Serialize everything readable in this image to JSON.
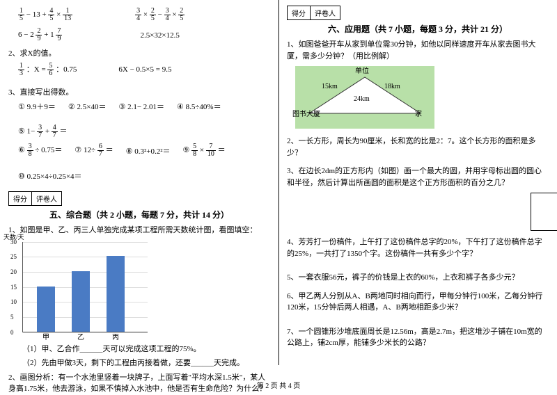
{
  "left": {
    "calc_row1a": "− 13 +",
    "calc_row1b": "×",
    "f1_5n": "1",
    "f1_5d": "5",
    "f4_5n": "4",
    "f4_5d": "5",
    "f1_13n": "1",
    "f1_13d": "13",
    "calc_row1c_a": "3",
    "calc_row1c_b": "4",
    "calc_row1c_c": "2",
    "calc_row1c_d": "5",
    "calc_row1c_e": "3",
    "calc_row1c_f": "4",
    "calc_row1c_g": "2",
    "calc_row1c_h": "5",
    "calc_row1c_text": "× − ×",
    "calc_row2a_pre": "6 − 2",
    "f2_9n": "2",
    "f2_9d": "9",
    "calc_row2a_mid": "+ 1",
    "f7_9n": "7",
    "f7_9d": "9",
    "calc_row2b": "2.5×32×12.5",
    "q2": "2、求X的值。",
    "q2a_pre": "：X =",
    "f1_3n": "1",
    "f1_3d": "3",
    "f5_6n": "5",
    "f5_6d": "6",
    "q2a_suf": "：0.75",
    "q2b": "6X − 0.5×5 = 9.5",
    "q3": "3、直接写出得数。",
    "c1": "① 9.9＋9＝",
    "c2": "② 2.5×40＝",
    "c3": "③ 2.1− 2.01＝",
    "c4": "④ 8.5÷40%＝",
    "c5": "⑤ 1−",
    "f3_7n": "3",
    "f3_7d": "7",
    "c5mid": "+",
    "f4_7n": "4",
    "f4_7d": "7",
    "c5suf": "＝",
    "c6": "⑥",
    "f3_8n": "3",
    "f3_8d": "8",
    "c6suf": "÷ 0.75＝",
    "c7": "⑦ 12÷",
    "f6_7n": "6",
    "f6_7d": "7",
    "c7suf": "＝",
    "c8": "⑧ 0.3²+0.2²＝",
    "c9": "⑨",
    "f5_8n": "5",
    "f5_8d": "8",
    "c9mid": "×",
    "f7_10n": "7",
    "f7_10d": "10",
    "c9suf": "＝",
    "c10": "⑩ 0.25×4÷0.25×4＝",
    "score_label1": "得分",
    "score_label2": "评卷人",
    "section5": "五、综合题（共 2 小题，每题 7 分，共计 14 分）",
    "s5q1": "1、如图是甲、乙、丙三人单独完成某项工程所需天数统计图，看图填空：",
    "chart": {
      "y_title": "天数/天",
      "y_vals": [
        "0",
        "5",
        "10",
        "15",
        "20",
        "25",
        "30"
      ],
      "bars": [
        {
          "label": "甲",
          "value": 15,
          "color": "#4a7bc4"
        },
        {
          "label": "乙",
          "value": 20,
          "color": "#4a7bc4"
        },
        {
          "label": "丙",
          "value": 25,
          "color": "#4a7bc4"
        }
      ],
      "max": 30
    },
    "s5q1a": "（1）甲、乙合作______天可以完成这项工程的75%。",
    "s5q1b": "（2）先由甲做3天，剩下的工程由丙接着做，还要______天完成。",
    "s5q2": "2、画图分析：有一个水池里竖着一块牌子，上面写着\"平均水深1.5米\"，某人身高1.75米，他去游泳，如果不慎掉入水池中，他是否有生命危险？为什么？"
  },
  "right": {
    "score_label1": "得分",
    "score_label2": "评卷人",
    "section6": "六、应用题（共 7 小题，每题 3 分，共计 21 分）",
    "q1": "1、如图爸爸开车从家到单位需30分钟，如他以同样速度开车从家去图书大厦，需多少分钟？（用比例解）",
    "tri": {
      "top": "单位",
      "left": "图书大厦",
      "right": "家",
      "lside": "15km",
      "rside": "18km",
      "base": "24km",
      "bg": "#b8e0a8"
    },
    "q2": "2、一长方形，周长为90厘米，长和宽的比是2：7。这个长方形的面积是多少？",
    "q3": "3、在边长2dm的正方形内（如图）画一个最大的圆，并用字母标出圆的圆心和半径，然后计算出所画圆的面积是这个正方形面积的百分之几？",
    "q4": "4、芳芳打一份稿件，上午打了这份稿件总字的20%，下午打了这份稿件总字的25%，一共打了1350个字。这份稿件一共有多少个字？",
    "q5": "5、一套衣服56元，裤子的价钱是上衣的60%，上衣和裤子各多少元？",
    "q6": "6、甲乙两人分别从A、B两地同时相向而行，甲每分钟行100米，乙每分钟行120米，15分钟后两人相遇，A、B两地相距多少米？",
    "q7": "7、一个圆锥形沙堆底面周长是12.56m，高是2.7m，把这堆沙子铺在10m宽的公路上，铺2cm厚，能铺多少米长的公路？"
  },
  "footer": "第 2 页 共 4 页"
}
